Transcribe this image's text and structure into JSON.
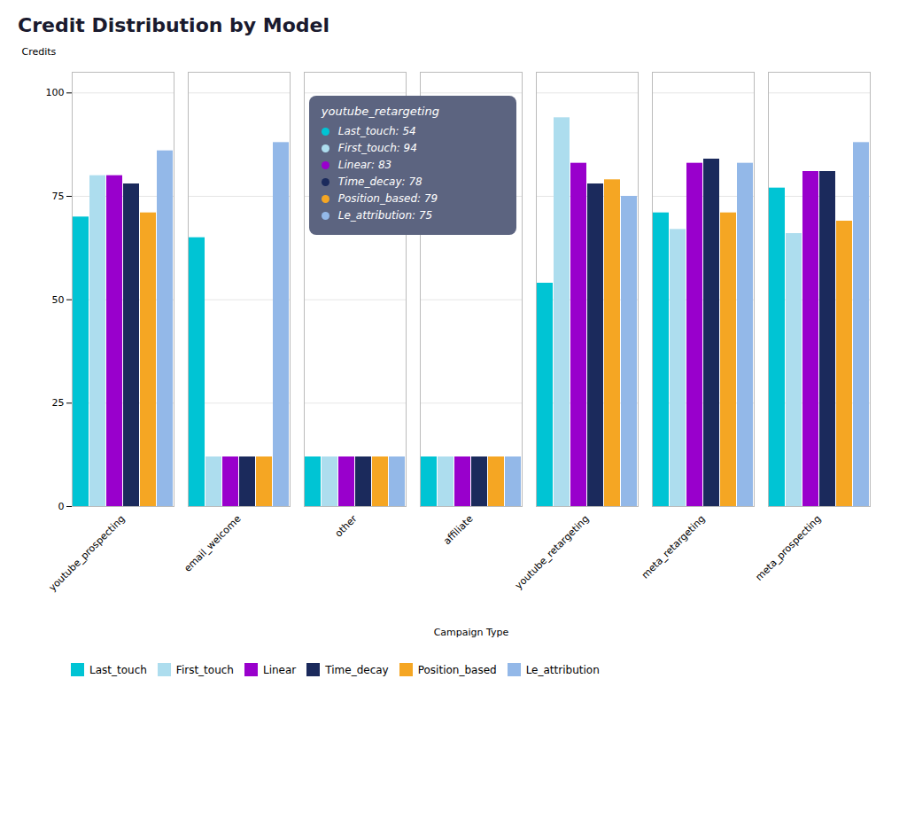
{
  "chart_data": {
    "type": "bar",
    "title": "Credit Distribution by Model",
    "xlabel": "Campaign Type",
    "ylabel": "Credits",
    "categories": [
      "youtube_prospecting",
      "email_welcome",
      "other",
      "affiliate",
      "youtube_retargeting",
      "meta_retargeting",
      "meta_prospecting"
    ],
    "series": [
      {
        "name": "Last_touch",
        "color": "#00C4D4",
        "values": [
          70,
          65,
          12,
          12,
          54,
          71,
          77
        ]
      },
      {
        "name": "First_touch",
        "color": "#ADDDEE",
        "values": [
          80,
          12,
          12,
          12,
          94,
          67,
          66
        ]
      },
      {
        "name": "Linear",
        "color": "#9900CC",
        "values": [
          80,
          12,
          12,
          12,
          83,
          83,
          81
        ]
      },
      {
        "name": "Time_decay",
        "color": "#1B2A5C",
        "values": [
          78,
          12,
          12,
          12,
          78,
          84,
          81
        ]
      },
      {
        "name": "Position_based",
        "color": "#F5A623",
        "values": [
          71,
          12,
          12,
          12,
          79,
          71,
          69
        ]
      },
      {
        "name": "Le_attribution",
        "color": "#93B8E8",
        "values": [
          86,
          88,
          12,
          12,
          75,
          83,
          88
        ]
      }
    ],
    "ylim": [
      0,
      105
    ],
    "yticks": [
      0,
      25,
      50,
      75,
      100
    ],
    "grid": true,
    "legend": "bottom",
    "annotations": [
      {
        "text": "youtube_retargeting"
      },
      {
        "text": "Last_touch: 54",
        "color": "#00C4D4"
      },
      {
        "text": "First_touch: 94",
        "color": "#ADDDEE"
      },
      {
        "text": "Linear: 83",
        "color": "#9900CC"
      },
      {
        "text": "Time_decay: 78",
        "color": "#1B2A5C"
      },
      {
        "text": "Position_based: 79",
        "color": "#F5A623"
      },
      {
        "text": "Le_attribution: 75",
        "color": "#93B8E8"
      }
    ]
  }
}
